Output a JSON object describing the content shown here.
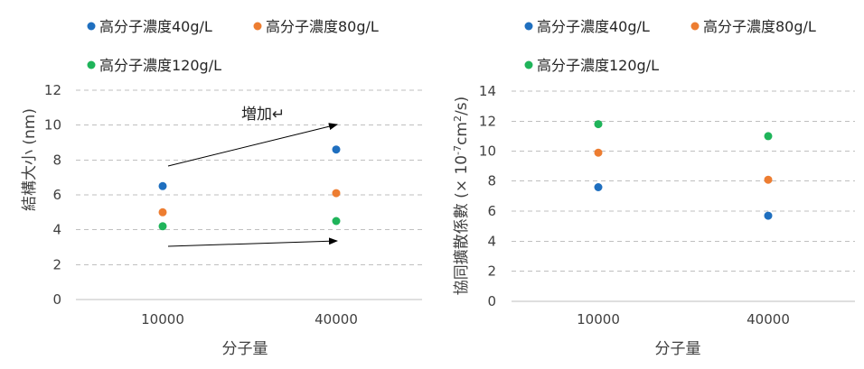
{
  "chart_data": [
    {
      "type": "scatter",
      "xlabel": "分子量",
      "ylabel": "結構大小 (nm)",
      "categories": [
        "10000",
        "40000"
      ],
      "ylim": [
        0,
        12
      ],
      "yticks": [
        0,
        2,
        4,
        6,
        8,
        10,
        12
      ],
      "grid": true,
      "legend": "top",
      "series": [
        {
          "name": "高分子濃度40g/L",
          "color": "#1f6fbf",
          "values": [
            6.5,
            8.6
          ]
        },
        {
          "name": "高分子濃度80g/L",
          "color": "#ed7d31",
          "values": [
            5.0,
            6.1
          ]
        },
        {
          "name": "高分子濃度120g/L",
          "color": "#1fb45a",
          "values": [
            4.2,
            4.5
          ]
        }
      ],
      "annotations": [
        {
          "text": "増加↵"
        }
      ]
    },
    {
      "type": "scatter",
      "xlabel": "分子量",
      "ylabel_main": "協同擴散係數 (× 10",
      "ylabel_sup1": "-7",
      "ylabel_mid": "cm",
      "ylabel_sup2": "2",
      "ylabel_end": "/s)",
      "categories": [
        "10000",
        "40000"
      ],
      "ylim": [
        0,
        14
      ],
      "yticks": [
        0,
        2,
        4,
        6,
        8,
        10,
        12,
        14
      ],
      "grid": true,
      "legend": "top",
      "series": [
        {
          "name": "高分子濃度40g/L",
          "color": "#1f6fbf",
          "values": [
            7.6,
            5.7
          ]
        },
        {
          "name": "高分子濃度80g/L",
          "color": "#ed7d31",
          "values": [
            9.9,
            8.1
          ]
        },
        {
          "name": "高分子濃度120g/L",
          "color": "#1fb45a",
          "values": [
            11.8,
            11.0
          ]
        }
      ]
    }
  ]
}
